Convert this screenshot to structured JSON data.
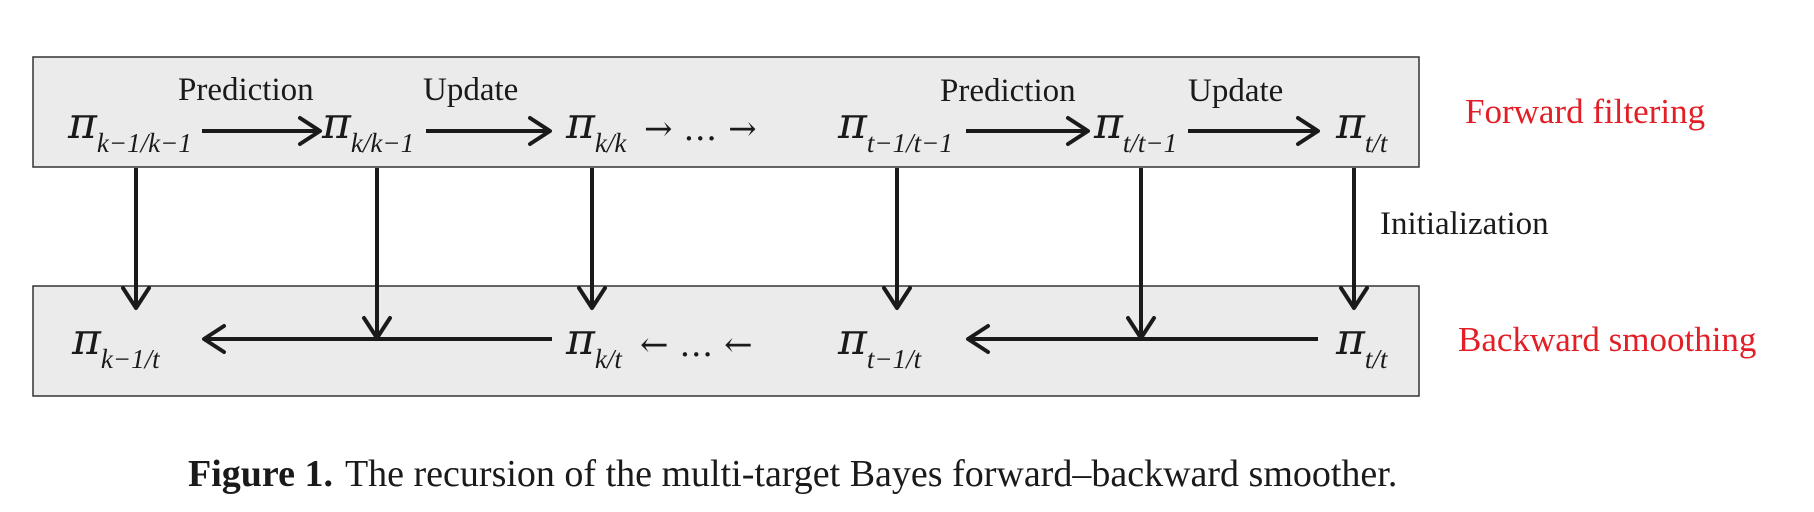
{
  "forward": {
    "stage_label": "Forward filtering",
    "labels": {
      "prediction_1": "Prediction",
      "update_1": "Update",
      "prediction_2": "Prediction",
      "update_2": "Update"
    },
    "nodes": [
      {
        "symbol": "π",
        "subscript": "k−1/k−1"
      },
      {
        "symbol": "π",
        "subscript": "k/k−1"
      },
      {
        "symbol": "π",
        "subscript": "k/k"
      },
      {
        "symbol": "π",
        "subscript": "t−1/t−1"
      },
      {
        "symbol": "π",
        "subscript": "t/t−1"
      },
      {
        "symbol": "π",
        "subscript": "t/t"
      }
    ],
    "sequence": "→ … →"
  },
  "initialization_label": "Initialization",
  "backward": {
    "stage_label": "Backward smoothing",
    "nodes": [
      {
        "symbol": "π",
        "subscript": "k−1/t"
      },
      {
        "symbol": "π",
        "subscript": "k/t"
      },
      {
        "symbol": "π",
        "subscript": "t−1/t"
      },
      {
        "symbol": "π",
        "subscript": "t/t"
      }
    ],
    "sequence": "← … ←"
  },
  "caption": {
    "label": "Figure 1.",
    "text": "The recursion of the multi-target Bayes forward–backward smoother."
  }
}
